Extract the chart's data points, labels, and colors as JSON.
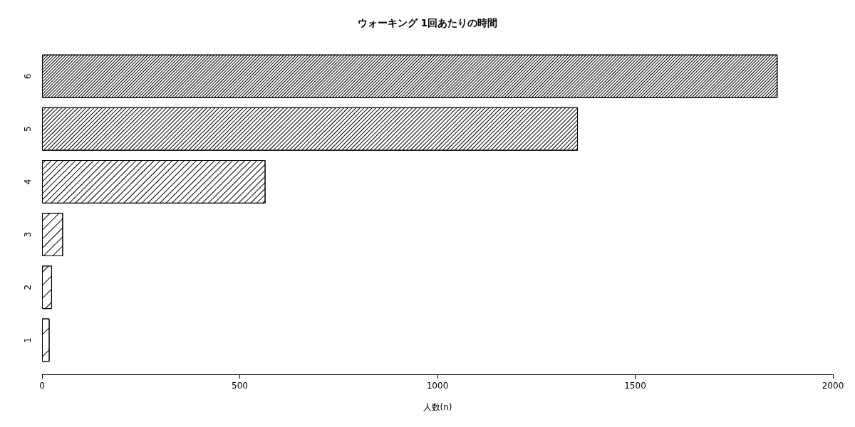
{
  "chart_data": {
    "type": "bar",
    "orientation": "horizontal",
    "title": "ウォーキング 1回あたりの時間",
    "xlabel": "人数(n)",
    "categories": [
      "6",
      "5",
      "4",
      "3",
      "2",
      "1"
    ],
    "values": [
      1860,
      1355,
      565,
      53,
      25,
      19
    ],
    "color": "#000000",
    "xlim": [
      0,
      2000
    ],
    "xticks": [
      0,
      500,
      1000,
      1500,
      2000
    ]
  }
}
